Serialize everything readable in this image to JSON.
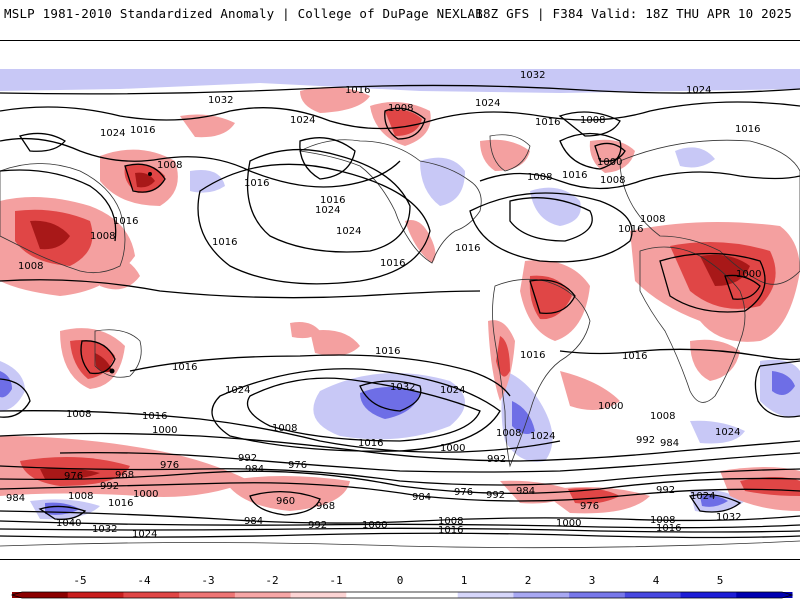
{
  "header": {
    "left_title": "MSLP 1981-2010 Standardized Anomaly | College of DuPage NEXLAB",
    "right_title": "18Z GFS | F384 Valid: 18Z THU APR 10 2025"
  },
  "colorbar": {
    "ticks": [
      "-5",
      "-4",
      "-3",
      "-2",
      "-1",
      "0",
      "1",
      "2",
      "3",
      "4",
      "5"
    ],
    "colors": [
      "#8b0000",
      "#c81e1e",
      "#e04646",
      "#ee7575",
      "#f7a6a6",
      "#fcd4d4",
      "#ffffff",
      "#ffffff",
      "#d6d6fa",
      "#a8a8f2",
      "#7878ea",
      "#4848e0",
      "#1e1ed6",
      "#0000b0"
    ]
  },
  "isobar_labels": [
    {
      "text": "1032"
    },
    {
      "text": "1024"
    },
    {
      "text": "1016"
    },
    {
      "text": "1008"
    },
    {
      "text": "1000"
    },
    {
      "text": "992"
    },
    {
      "text": "984"
    },
    {
      "text": "976"
    },
    {
      "text": "968"
    },
    {
      "text": "960"
    },
    {
      "text": "1040"
    }
  ],
  "map_labels": {
    "l01": "1032",
    "l02": "1016",
    "l03": "1008",
    "l04": "1024",
    "l05": "1032",
    "l06": "1024",
    "l07": "1024",
    "l08": "1016",
    "l09": "1016",
    "l10": "1008",
    "l11": "1016",
    "l12": "1008",
    "l13": "1024",
    "l14": "1016",
    "l15": "1016",
    "l16": "1016",
    "l17": "1008",
    "l18": "1016",
    "l19": "1024",
    "l20": "1016",
    "l21": "1024",
    "l22": "1016",
    "l23": "1008",
    "l24": "1016",
    "l25": "1008",
    "l26": "1008",
    "l27": "1000",
    "l28": "1008",
    "l29": "1000",
    "l30": "1016",
    "l31": "1016",
    "l32": "1016",
    "l33": "1032",
    "l34": "1024",
    "l35": "1024",
    "l36": "1016",
    "l37": "1024",
    "l38": "1000",
    "l39": "1008",
    "l40": "1008",
    "l41": "1016",
    "l42": "1016",
    "l43": "1000",
    "l44": "1008",
    "l45": "1000",
    "l46": "992",
    "l47": "984",
    "l48": "992",
    "l49": "976",
    "l50": "984",
    "l51": "1024",
    "l52": "976",
    "l53": "976",
    "l54": "968",
    "l55": "992",
    "l56": "984",
    "l57": "1008",
    "l58": "1016",
    "l59": "1000",
    "l60": "960",
    "l61": "968",
    "l62": "984",
    "l63": "976",
    "l64": "992",
    "l65": "984",
    "l66": "976",
    "l67": "992",
    "l68": "1024",
    "l69": "1032",
    "l70": "1040",
    "l71": "1032",
    "l72": "1024",
    "l73": "984",
    "l74": "992",
    "l75": "1000",
    "l76": "1008",
    "l77": "1016",
    "l78": "1008",
    "l79": "1016",
    "l80": "1000",
    "l81": "1008",
    "l82": "1016",
    "l83": "992"
  }
}
